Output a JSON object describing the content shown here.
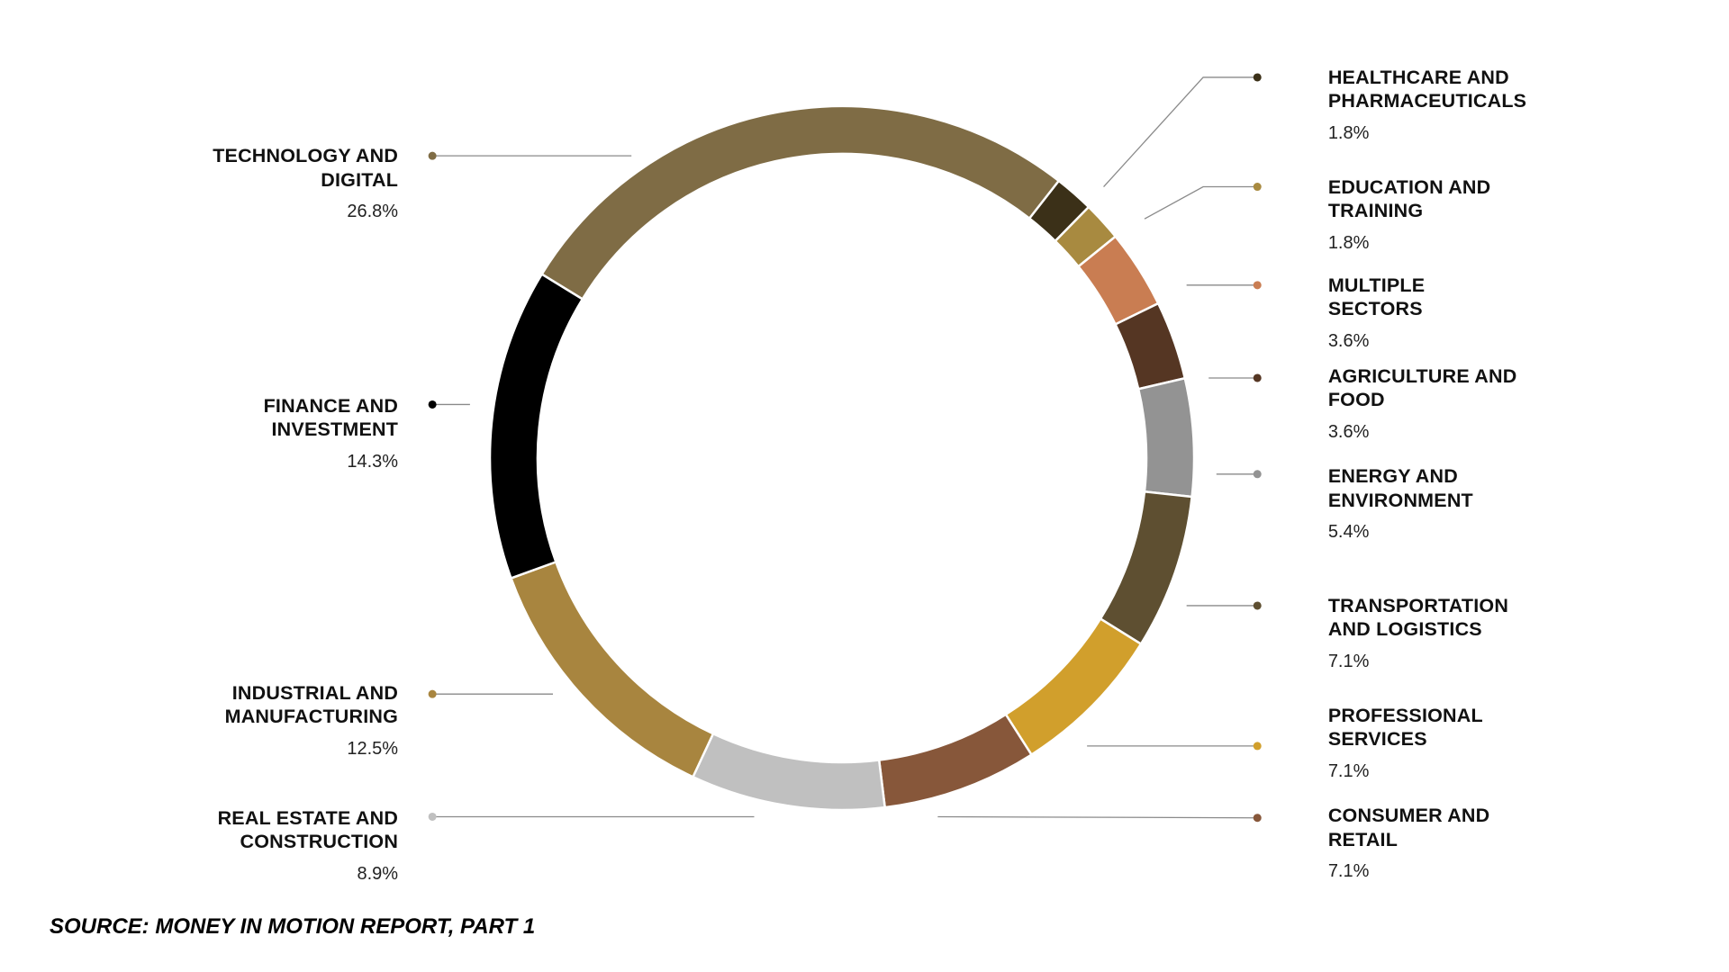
{
  "chart_data": {
    "type": "pie",
    "subtype": "donut",
    "direction": "clockwise",
    "slices": [
      {
        "name_lines": [
          "HEALTHCARE AND",
          "PHARMACEUTICALS"
        ],
        "value": 1.8,
        "label": "1.8%",
        "color": "#3b3018",
        "side": "right"
      },
      {
        "name_lines": [
          "EDUCATION AND",
          "TRAINING"
        ],
        "value": 1.8,
        "label": "1.8%",
        "color": "#a88a40",
        "side": "right"
      },
      {
        "name_lines": [
          "MULTIPLE",
          "SECTORS"
        ],
        "value": 3.6,
        "label": "3.6%",
        "color": "#c97d52",
        "side": "right"
      },
      {
        "name_lines": [
          "AGRICULTURE AND",
          "FOOD"
        ],
        "value": 3.6,
        "label": "3.6%",
        "color": "#553623",
        "side": "right"
      },
      {
        "name_lines": [
          "ENERGY AND",
          "ENVIRONMENT"
        ],
        "value": 5.4,
        "label": "5.4%",
        "color": "#939393",
        "side": "right"
      },
      {
        "name_lines": [
          "TRANSPORTATION",
          "AND LOGISTICS"
        ],
        "value": 7.1,
        "label": "7.1%",
        "color": "#5e4f31",
        "side": "right"
      },
      {
        "name_lines": [
          "PROFESSIONAL",
          "SERVICES"
        ],
        "value": 7.1,
        "label": "7.1%",
        "color": "#d19f2c",
        "side": "right"
      },
      {
        "name_lines": [
          "CONSUMER AND",
          "RETAIL"
        ],
        "value": 7.1,
        "label": "7.1%",
        "color": "#87573a",
        "side": "right"
      },
      {
        "name_lines": [
          "REAL ESTATE AND",
          "CONSTRUCTION"
        ],
        "value": 8.9,
        "label": "8.9%",
        "color": "#c0c0c0",
        "side": "left"
      },
      {
        "name_lines": [
          "INDUSTRIAL AND",
          "MANUFACTURING"
        ],
        "value": 12.5,
        "label": "12.5%",
        "color": "#a8853f",
        "side": "left"
      },
      {
        "name_lines": [
          "FINANCE AND",
          "INVESTMENT"
        ],
        "value": 14.3,
        "label": "14.3%",
        "color": "#000000",
        "side": "left"
      },
      {
        "name_lines": [
          "TECHNOLOGY AND",
          "DIGITAL"
        ],
        "value": 26.8,
        "label": "26.8%",
        "color": "#7f6c45",
        "side": "left"
      }
    ],
    "legend": "none",
    "labels": "outside with leader lines"
  },
  "source": "SOURCE: MONEY IN  MOTION REPORT, PART 1"
}
